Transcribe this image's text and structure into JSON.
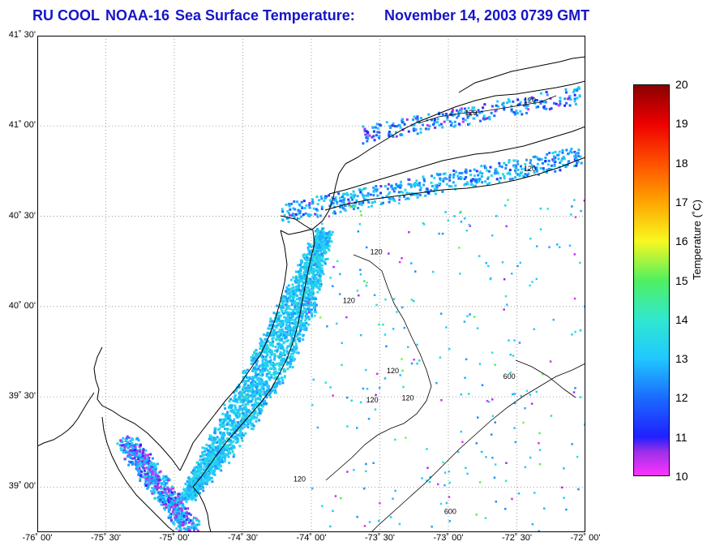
{
  "title": {
    "org": "RU COOL",
    "satellite": "NOAA-16",
    "product": "Sea Surface Temperature:",
    "datetime": "November 14, 2003 0739 GMT",
    "color": "#1515c8"
  },
  "map": {
    "lon_range": [
      -76.0,
      -72.0
    ],
    "lat_range": [
      38.75,
      41.5
    ],
    "lat_ticks": [
      {
        "value": 41.5,
        "label": "41˚ 30'"
      },
      {
        "value": 41.0,
        "label": "41˚ 00'"
      },
      {
        "value": 40.5,
        "label": "40˚ 30'"
      },
      {
        "value": 40.0,
        "label": "40˚ 00'"
      },
      {
        "value": 39.5,
        "label": "39˚ 30'"
      },
      {
        "value": 39.0,
        "label": "39˚ 00'"
      }
    ],
    "lon_ticks": [
      {
        "value": -76.0,
        "label": "-76˚ 00'"
      },
      {
        "value": -75.5,
        "label": "-75˚ 30'"
      },
      {
        "value": -75.0,
        "label": "-75˚ 00'"
      },
      {
        "value": -74.5,
        "label": "-74˚ 30'"
      },
      {
        "value": -74.0,
        "label": "-74˚ 00'"
      },
      {
        "value": -73.5,
        "label": "-73˚ 30'"
      },
      {
        "value": -73.0,
        "label": "-73˚ 00'"
      },
      {
        "value": -72.5,
        "label": "-72˚ 30'"
      },
      {
        "value": -72.0,
        "label": "-72˚ 00'"
      }
    ],
    "grid": "dotted",
    "isobath_labels": [
      {
        "text": "120",
        "lon": -72.88,
        "lat": 41.06
      },
      {
        "text": "120",
        "lon": -72.45,
        "lat": 41.13
      },
      {
        "text": "120",
        "lon": -72.45,
        "lat": 40.75
      },
      {
        "text": "120",
        "lon": -73.57,
        "lat": 40.29
      },
      {
        "text": "120",
        "lon": -73.77,
        "lat": 40.02
      },
      {
        "text": "120",
        "lon": -73.45,
        "lat": 39.63
      },
      {
        "text": "120",
        "lon": -73.6,
        "lat": 39.47
      },
      {
        "text": "120",
        "lon": -73.34,
        "lat": 39.48
      },
      {
        "text": "120",
        "lon": -74.13,
        "lat": 39.03
      },
      {
        "text": "600",
        "lon": -72.6,
        "lat": 39.6
      },
      {
        "text": "600",
        "lon": -73.03,
        "lat": 38.85
      }
    ]
  },
  "colorbar": {
    "min": 10,
    "max": 20,
    "ticks": [
      "20",
      "19",
      "18",
      "17",
      "16",
      "15",
      "14",
      "13",
      "12",
      "11",
      "10"
    ],
    "label": "Temperature (˚C)",
    "stops": [
      {
        "v": 10,
        "color": "#ff33ff"
      },
      {
        "v": 10.6,
        "color": "#a030e8"
      },
      {
        "v": 11.0,
        "color": "#2020ff"
      },
      {
        "v": 12.0,
        "color": "#1a6cff"
      },
      {
        "v": 13.0,
        "color": "#20c8ff"
      },
      {
        "v": 14.0,
        "color": "#30e8d0"
      },
      {
        "v": 15.0,
        "color": "#50f060"
      },
      {
        "v": 16.0,
        "color": "#f8f820"
      },
      {
        "v": 17.0,
        "color": "#ffa500"
      },
      {
        "v": 18.0,
        "color": "#ff5000"
      },
      {
        "v": 19.0,
        "color": "#ee0000"
      },
      {
        "v": 20.0,
        "color": "#8a0000"
      }
    ]
  }
}
